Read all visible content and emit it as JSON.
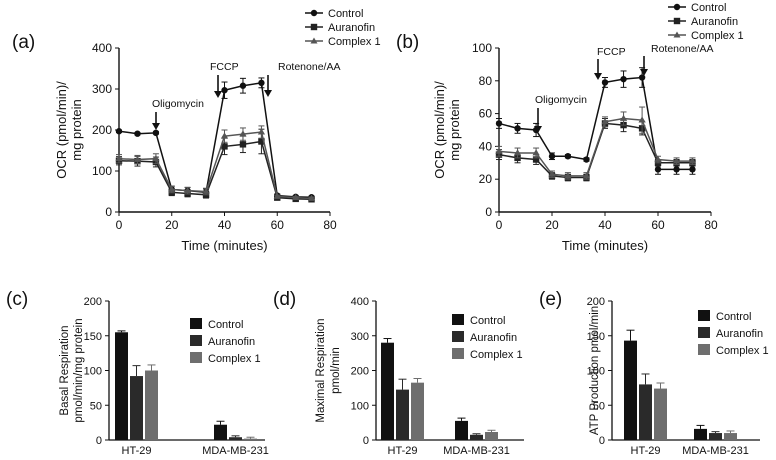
{
  "legend": {
    "top": [
      "Control",
      "Auranofin",
      "Complex 1"
    ],
    "bottom": [
      "Control",
      "Auranofin",
      "Complex 1"
    ]
  },
  "colors": {
    "Control": "#111111",
    "Auranofin": "#2a2a2a",
    "Complex 1": "#6e6e6e"
  },
  "chart_data": [
    {
      "panel": "(a)",
      "type": "line",
      "xlabel": "Time (minutes)",
      "ylabel": [
        "OCR (pmol/min)/",
        "mg protein"
      ],
      "xlim": [
        0,
        80
      ],
      "ylim": [
        0,
        400
      ],
      "xticks": [
        0,
        20,
        40,
        60,
        80
      ],
      "yticks": [
        0,
        100,
        200,
        300,
        400
      ],
      "x": [
        0,
        7,
        14,
        20,
        26,
        33,
        40,
        47,
        54,
        60,
        67,
        73
      ],
      "series": [
        {
          "name": "Control",
          "marker": "circle",
          "values": [
            197,
            191,
            193,
            55,
            52,
            48,
            297,
            308,
            315,
            40,
            37,
            36
          ],
          "err": [
            3,
            3,
            3,
            8,
            8,
            8,
            20,
            18,
            12,
            4,
            3,
            3
          ]
        },
        {
          "name": "Auranofin",
          "marker": "square",
          "values": [
            125,
            124,
            122,
            48,
            45,
            42,
            160,
            165,
            172,
            35,
            32,
            31
          ],
          "err": [
            10,
            12,
            12,
            8,
            8,
            8,
            20,
            20,
            30,
            3,
            3,
            3
          ]
        },
        {
          "name": "Complex 1",
          "marker": "triangle",
          "values": [
            130,
            128,
            130,
            55,
            52,
            50,
            185,
            190,
            195,
            38,
            35,
            33
          ],
          "err": [
            10,
            10,
            12,
            8,
            8,
            8,
            15,
            15,
            15,
            3,
            3,
            3
          ]
        }
      ],
      "annotations": [
        {
          "text": "Oligomycin",
          "x": 14
        },
        {
          "text": "FCCP",
          "x": 39
        },
        {
          "text": "Rotenone/AA",
          "x": 56
        }
      ]
    },
    {
      "panel": "(b)",
      "type": "line",
      "xlabel": "Time (minutes)",
      "ylabel": [
        "OCR (pmol/min)/",
        "mg protein"
      ],
      "xlim": [
        0,
        80
      ],
      "ylim": [
        0,
        100
      ],
      "xticks": [
        0,
        20,
        40,
        60,
        80
      ],
      "yticks": [
        0,
        20,
        40,
        60,
        80,
        100
      ],
      "x": [
        0,
        7,
        14,
        20,
        26,
        33,
        40,
        47,
        54,
        60,
        67,
        73
      ],
      "series": [
        {
          "name": "Control",
          "marker": "circle",
          "values": [
            54,
            51,
            50,
            34,
            34,
            32,
            79,
            81,
            82,
            26,
            26,
            26
          ],
          "err": [
            3,
            3,
            4,
            2,
            1,
            1,
            3,
            5,
            6,
            3,
            3,
            3
          ]
        },
        {
          "name": "Auranofin",
          "marker": "square",
          "values": [
            35,
            33,
            32,
            22,
            21,
            21,
            54,
            53,
            51,
            30,
            30,
            30
          ],
          "err": [
            3,
            3,
            3,
            2,
            2,
            2,
            3,
            4,
            4,
            2,
            2,
            2
          ]
        },
        {
          "name": "Complex 1",
          "marker": "triangle",
          "values": [
            37,
            36,
            36,
            23,
            22,
            22,
            55,
            57,
            56,
            32,
            31,
            31
          ],
          "err": [
            3,
            3,
            3,
            2,
            2,
            2,
            3,
            4,
            8,
            2,
            2,
            2
          ]
        }
      ],
      "annotations": [
        {
          "text": "Oligomycin",
          "x": 17
        },
        {
          "text": "FCCP",
          "x": 38
        },
        {
          "text": "Rotenone/AA",
          "x": 55
        }
      ]
    },
    {
      "panel": "(c)",
      "type": "bar",
      "ylabel": [
        "Basal Respiration",
        "pmol/min/mg protein"
      ],
      "categories": [
        "HT-29",
        "MDA-MB-231"
      ],
      "ylim": [
        0,
        200
      ],
      "yticks": [
        0,
        50,
        100,
        150,
        200
      ],
      "series": [
        {
          "name": "Control",
          "values": [
            155,
            22
          ],
          "err": [
            2,
            5
          ]
        },
        {
          "name": "Auranofin",
          "values": [
            92,
            4
          ],
          "err": [
            15,
            2
          ]
        },
        {
          "name": "Complex 1",
          "values": [
            100,
            2
          ],
          "err": [
            8,
            2
          ]
        }
      ]
    },
    {
      "panel": "(d)",
      "type": "bar",
      "ylabel": [
        "Maximal Respiration",
        "pmol/min"
      ],
      "categories": [
        "HT-29",
        "MDA-MB-231"
      ],
      "ylim": [
        0,
        400
      ],
      "yticks": [
        0,
        100,
        200,
        300,
        400
      ],
      "series": [
        {
          "name": "Control",
          "values": [
            280,
            55
          ],
          "err": [
            12,
            8
          ]
        },
        {
          "name": "Auranofin",
          "values": [
            145,
            15
          ],
          "err": [
            30,
            3
          ]
        },
        {
          "name": "Complex 1",
          "values": [
            165,
            23
          ],
          "err": [
            12,
            5
          ]
        }
      ]
    },
    {
      "panel": "(e)",
      "type": "bar",
      "ylabel": [
        "ATP Production pmol/min"
      ],
      "categories": [
        "HT-29",
        "MDA-MB-231"
      ],
      "ylim": [
        0,
        200
      ],
      "yticks": [
        0,
        50,
        100,
        150,
        200
      ],
      "series": [
        {
          "name": "Control",
          "values": [
            143,
            16
          ],
          "err": [
            15,
            5
          ]
        },
        {
          "name": "Auranofin",
          "values": [
            80,
            10
          ],
          "err": [
            15,
            2
          ]
        },
        {
          "name": "Complex 1",
          "values": [
            74,
            10
          ],
          "err": [
            8,
            3
          ]
        }
      ]
    }
  ]
}
